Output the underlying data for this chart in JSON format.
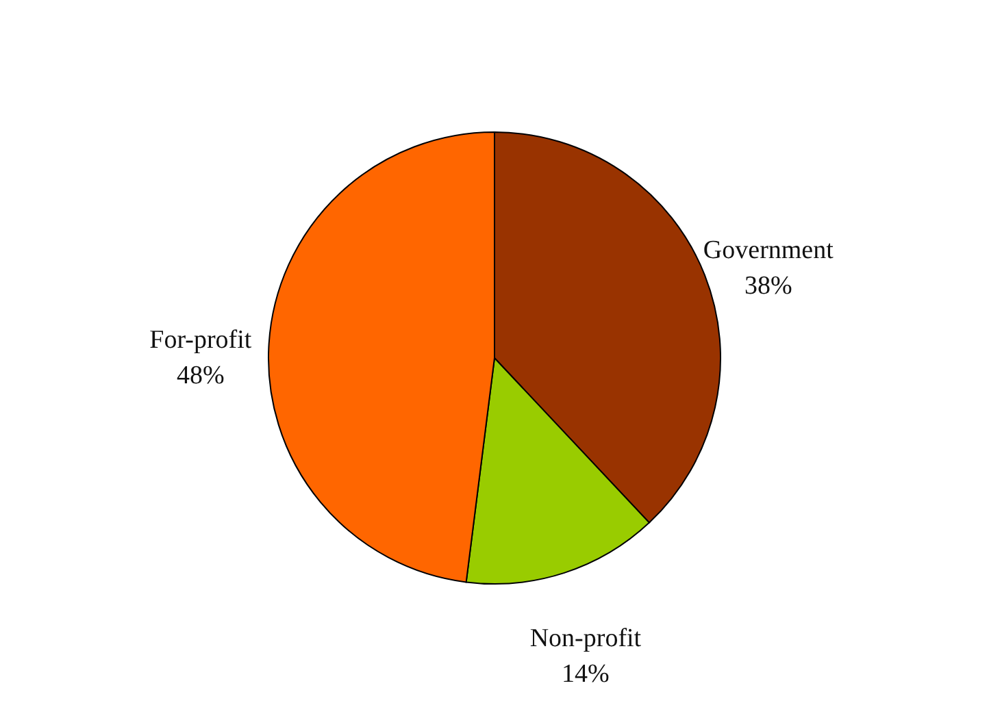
{
  "chart_data": {
    "type": "pie",
    "categories": [
      "Government",
      "Non-profit",
      "For-profit"
    ],
    "values": [
      38,
      14,
      48
    ],
    "colors": [
      "#993300",
      "#99cc00",
      "#ff6600"
    ],
    "data_labels": true,
    "value_labels": [
      "38%",
      "14%",
      "48%"
    ],
    "legend": false
  }
}
